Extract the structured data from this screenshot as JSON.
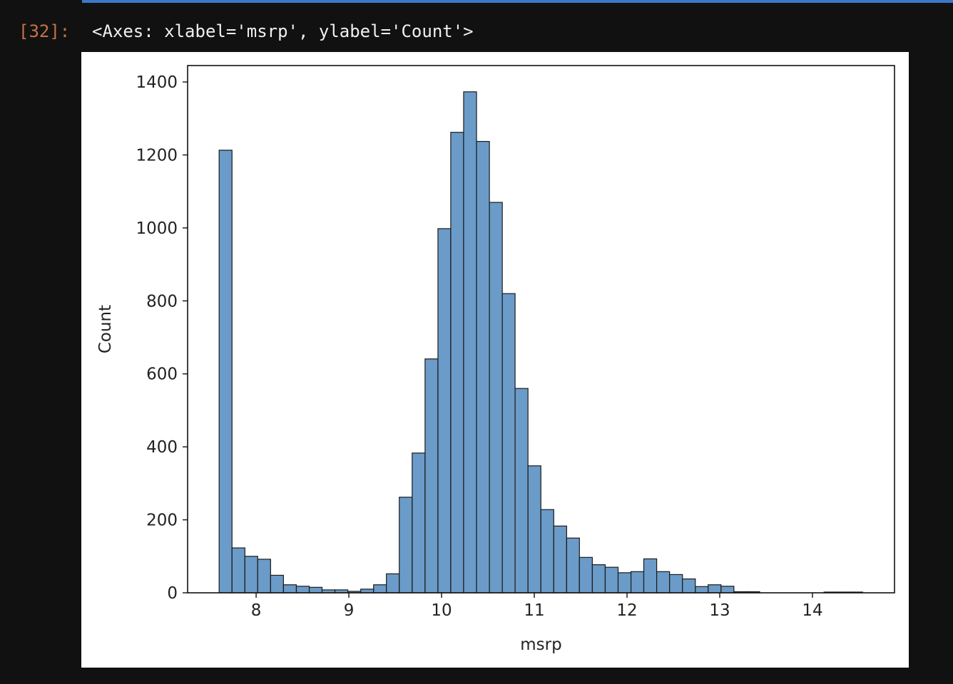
{
  "cell": {
    "prompt": "[32]:",
    "output": "<Axes: xlabel='msrp', ylabel='Count'>"
  },
  "chart_data": {
    "type": "histogram",
    "x_label": "msrp",
    "y_label": "Count",
    "color": "#6b9bc8",
    "edge_color": "#1a1a1a",
    "bins": [
      7.601,
      7.74,
      7.879,
      8.017,
      8.156,
      8.295,
      8.434,
      8.573,
      8.711,
      8.85,
      8.989,
      9.128,
      9.267,
      9.405,
      9.544,
      9.683,
      9.822,
      9.961,
      10.099,
      10.238,
      10.377,
      10.516,
      10.655,
      10.793,
      10.932,
      11.071,
      11.21,
      11.349,
      11.487,
      11.626,
      11.765,
      11.904,
      12.043,
      12.181,
      12.32,
      12.459,
      12.598,
      12.737,
      12.875,
      13.014,
      13.153,
      13.292,
      13.431,
      13.569,
      13.708,
      13.847,
      13.986,
      14.125,
      14.263,
      14.402,
      14.541
    ],
    "values": [
      1213,
      123,
      100,
      92,
      48,
      22,
      18,
      15,
      8,
      8,
      4,
      10,
      22,
      52,
      262,
      383,
      641,
      998,
      1262,
      1373,
      1237,
      1070,
      820,
      560,
      348,
      228,
      183,
      150,
      97,
      77,
      70,
      55,
      58,
      93,
      58,
      50,
      38,
      17,
      22,
      18,
      3,
      3,
      0,
      0,
      0,
      0,
      0,
      2,
      2,
      2
    ],
    "xlim": [
      7.261,
      14.885
    ],
    "ylim": [
      0,
      1445
    ],
    "xticks": [
      8,
      9,
      10,
      11,
      12,
      13,
      14
    ],
    "yticks": [
      0,
      200,
      400,
      600,
      800,
      1000,
      1200,
      1400
    ]
  }
}
